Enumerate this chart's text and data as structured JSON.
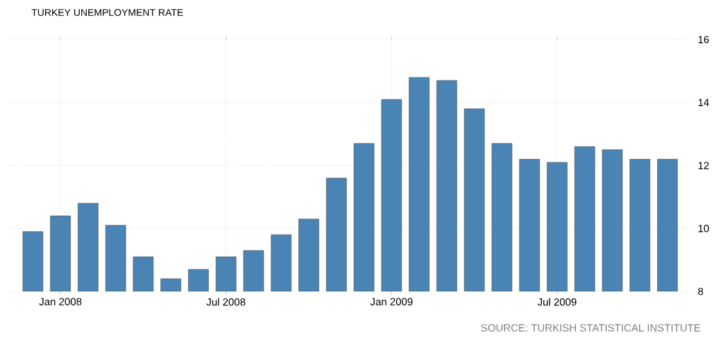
{
  "chart_data": {
    "type": "bar",
    "title": "TURKEY UNEMPLOYMENT RATE",
    "categories": [
      null,
      "Jan 2008",
      null,
      null,
      null,
      null,
      null,
      "Jul 2008",
      null,
      null,
      null,
      null,
      null,
      "Jan 2009",
      null,
      null,
      null,
      null,
      null,
      "Jul 2009",
      null,
      null,
      null,
      null
    ],
    "values": [
      9.9,
      10.4,
      10.8,
      10.1,
      9.1,
      8.4,
      8.7,
      9.1,
      9.3,
      9.8,
      10.3,
      11.6,
      12.7,
      14.1,
      14.8,
      14.7,
      13.8,
      12.7,
      12.2,
      12.1,
      12.6,
      12.5,
      12.2,
      12.2
    ],
    "color": "#4a84b5",
    "ylim": [
      8,
      16
    ],
    "yticks": [
      8,
      10,
      12,
      14,
      16
    ],
    "grid": true,
    "annotations": [
      "SOURCE: TURKISH STATISTICAL INSTITUTE"
    ]
  }
}
